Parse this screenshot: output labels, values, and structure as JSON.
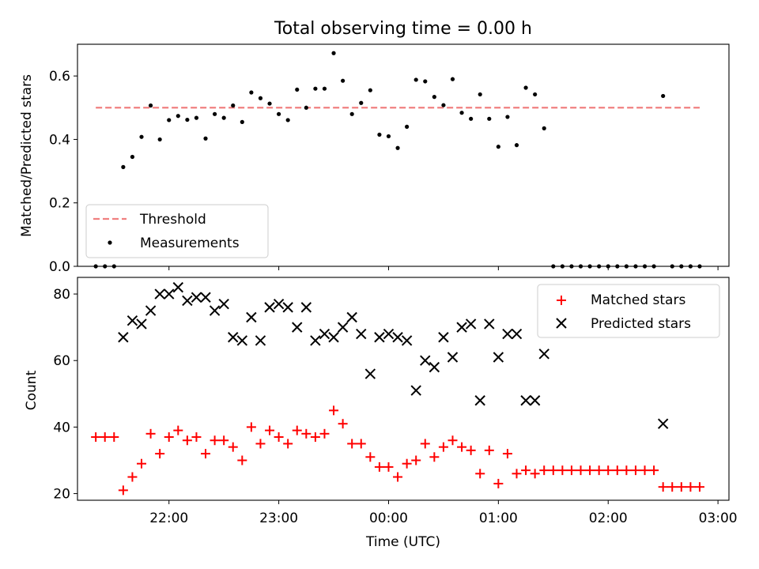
{
  "chart_data": [
    {
      "type": "scatter",
      "title": "Total observing time = 0.00 h",
      "xlabel": "",
      "ylabel": "Matched/Predicted stars",
      "xlim": [
        "21:10",
        "03:06"
      ],
      "ylim": [
        0,
        0.7
      ],
      "yticks": [
        "0.0",
        "0.2",
        "0.4",
        "0.6"
      ],
      "grid": false,
      "legend_position": "lower-left",
      "series": [
        {
          "name": "Threshold",
          "style": "dashed-line",
          "color": "#f08080",
          "x": [
            "21:20",
            "02:50"
          ],
          "y": [
            0.5,
            0.5
          ]
        },
        {
          "name": "Measurements",
          "style": "dot",
          "color": "#000000",
          "x": [
            "21:20",
            "21:25",
            "21:30",
            "21:35",
            "21:40",
            "21:45",
            "21:50",
            "21:55",
            "22:00",
            "22:05",
            "22:10",
            "22:15",
            "22:20",
            "22:25",
            "22:30",
            "22:35",
            "22:40",
            "22:45",
            "22:50",
            "22:55",
            "23:00",
            "23:05",
            "23:10",
            "23:15",
            "23:20",
            "23:25",
            "23:30",
            "23:35",
            "23:40",
            "23:45",
            "23:50",
            "23:55",
            "00:00",
            "00:05",
            "00:10",
            "00:15",
            "00:20",
            "00:25",
            "00:30",
            "00:35",
            "00:40",
            "00:45",
            "00:50",
            "00:55",
            "01:00",
            "01:05",
            "01:10",
            "01:15",
            "01:20",
            "01:25",
            "01:30",
            "01:35",
            "01:40",
            "01:45",
            "01:50",
            "01:55",
            "02:00",
            "02:05",
            "02:10",
            "02:15",
            "02:20",
            "02:25",
            "02:30",
            "02:35",
            "02:40",
            "02:45",
            "02:50"
          ],
          "y": [
            0.0,
            0.0,
            0.0,
            0.313,
            0.345,
            0.408,
            0.507,
            0.4,
            0.461,
            0.474,
            0.462,
            0.468,
            0.403,
            0.48,
            0.468,
            0.507,
            0.455,
            0.548,
            0.53,
            0.513,
            0.48,
            0.461,
            0.557,
            0.5,
            0.56,
            0.56,
            0.672,
            0.585,
            0.48,
            0.515,
            0.555,
            0.415,
            0.41,
            0.373,
            0.44,
            0.588,
            0.583,
            0.534,
            0.508,
            0.59,
            0.484,
            0.465,
            0.542,
            0.465,
            0.377,
            0.471,
            0.382,
            0.563,
            0.542,
            0.435,
            0.0,
            0.0,
            0.0,
            0.0,
            0.0,
            0.0,
            0.0,
            0.0,
            0.0,
            0.0,
            0.0,
            0.0,
            0.537,
            0.0,
            0.0,
            0.0,
            0.0
          ]
        }
      ]
    },
    {
      "type": "scatter",
      "title": "",
      "xlabel": "Time (UTC)",
      "ylabel": "Count",
      "xlim": [
        "21:10",
        "03:06"
      ],
      "ylim": [
        18,
        85
      ],
      "yticks": [
        "20",
        "40",
        "60",
        "80"
      ],
      "xticks": [
        "22:00",
        "23:00",
        "00:00",
        "01:00",
        "02:00",
        "03:00"
      ],
      "grid": false,
      "legend_position": "upper-right",
      "series": [
        {
          "name": "Matched stars",
          "marker": "plus",
          "color": "#ff0000",
          "x": [
            "21:20",
            "21:25",
            "21:30",
            "21:35",
            "21:40",
            "21:45",
            "21:50",
            "21:55",
            "22:00",
            "22:05",
            "22:10",
            "22:15",
            "22:20",
            "22:25",
            "22:30",
            "22:35",
            "22:40",
            "22:45",
            "22:50",
            "22:55",
            "23:00",
            "23:05",
            "23:10",
            "23:15",
            "23:20",
            "23:25",
            "23:30",
            "23:35",
            "23:40",
            "23:45",
            "23:50",
            "23:55",
            "00:00",
            "00:05",
            "00:10",
            "00:15",
            "00:20",
            "00:25",
            "00:30",
            "00:35",
            "00:40",
            "00:45",
            "00:50",
            "00:55",
            "01:00",
            "01:05",
            "01:10",
            "01:15",
            "01:20",
            "01:25",
            "01:30",
            "01:35",
            "01:40",
            "01:45",
            "01:50",
            "01:55",
            "02:00",
            "02:05",
            "02:10",
            "02:15",
            "02:20",
            "02:25",
            "02:30",
            "02:35",
            "02:40",
            "02:45",
            "02:50"
          ],
          "y": [
            37,
            37,
            37,
            21,
            25,
            29,
            38,
            32,
            37,
            39,
            36,
            37,
            32,
            36,
            36,
            34,
            30,
            40,
            35,
            39,
            37,
            35,
            39,
            38,
            37,
            38,
            45,
            41,
            35,
            35,
            31,
            28,
            28,
            25,
            29,
            30,
            35,
            31,
            34,
            36,
            34,
            33,
            26,
            33,
            23,
            32,
            26,
            27,
            26,
            27,
            27,
            27,
            27,
            27,
            27,
            27,
            27,
            27,
            27,
            27,
            27,
            27,
            22,
            22,
            22,
            22,
            22
          ]
        },
        {
          "name": "Predicted stars",
          "marker": "x",
          "color": "#000000",
          "x": [
            "21:35",
            "21:40",
            "21:45",
            "21:50",
            "21:55",
            "22:00",
            "22:05",
            "22:10",
            "22:15",
            "22:20",
            "22:25",
            "22:30",
            "22:35",
            "22:40",
            "22:45",
            "22:50",
            "22:55",
            "23:00",
            "23:05",
            "23:10",
            "23:15",
            "23:20",
            "23:25",
            "23:30",
            "23:35",
            "23:40",
            "23:45",
            "23:50",
            "23:55",
            "00:00",
            "00:05",
            "00:10",
            "00:15",
            "00:20",
            "00:25",
            "00:30",
            "00:35",
            "00:40",
            "00:45",
            "00:50",
            "00:55",
            "01:00",
            "01:05",
            "01:10",
            "01:15",
            "01:20",
            "01:25",
            "02:30"
          ],
          "y": [
            67,
            72,
            71,
            75,
            80,
            80,
            82,
            78,
            79,
            79,
            75,
            77,
            67,
            66,
            73,
            66,
            76,
            77,
            76,
            70,
            76,
            66,
            68,
            67,
            70,
            73,
            68,
            56,
            67,
            68,
            67,
            66,
            51,
            60,
            58,
            67,
            61,
            70,
            71,
            48,
            71,
            61,
            68,
            68,
            48,
            48,
            62,
            41
          ]
        }
      ]
    }
  ]
}
